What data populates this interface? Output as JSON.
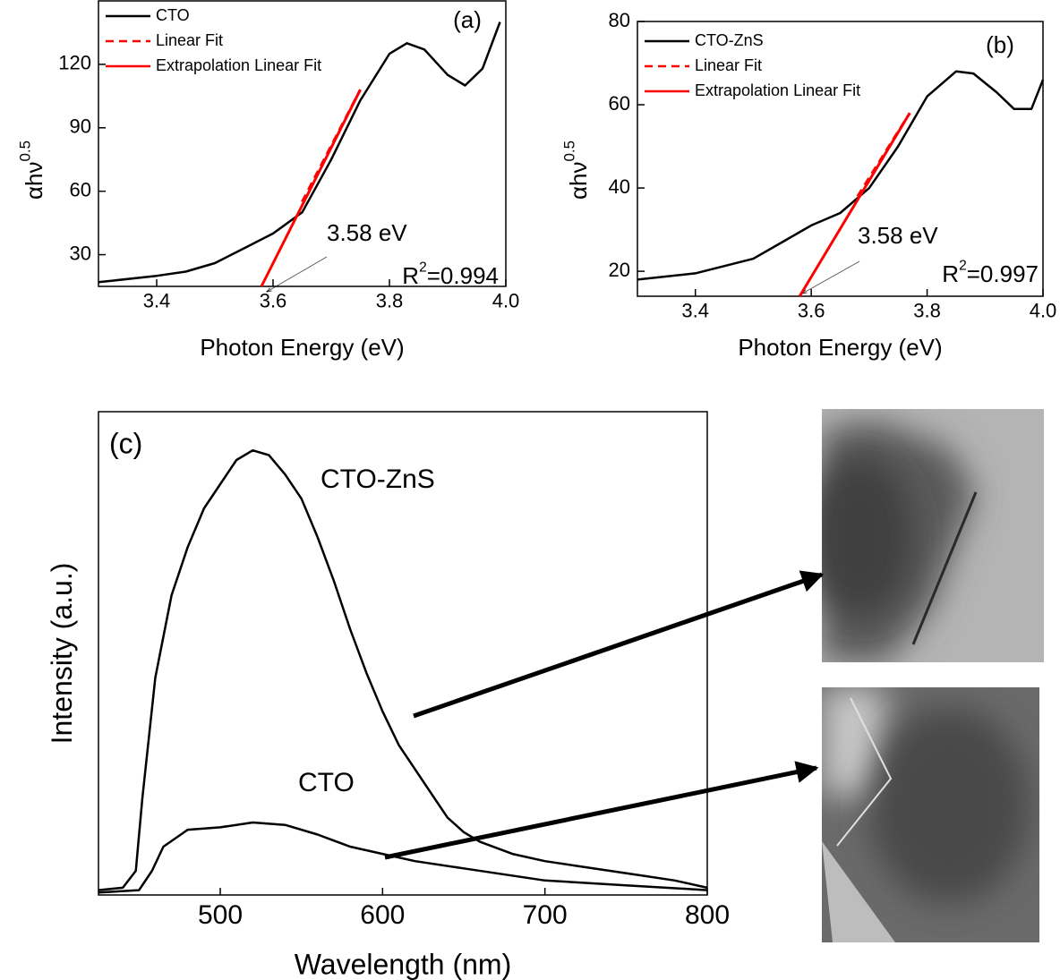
{
  "chart_data": [
    {
      "type": "line",
      "panel_label": "(a)",
      "xlabel": "Photon Energy (eV)",
      "ylabel": {
        "text": "αhν",
        "sup": "0.5"
      },
      "xlim": [
        3.3,
        4.0
      ],
      "xticks": [
        3.4,
        3.6,
        3.8,
        {
          "value": 4.0,
          "label": "4.0"
        }
      ],
      "ylim": [
        15,
        150
      ],
      "yticks": [
        30,
        60,
        90,
        120
      ],
      "legend": "upper left",
      "series": [
        {
          "name": "CTO",
          "color": "#000000",
          "linestyle": "solid",
          "x": [
            3.3,
            3.4,
            3.45,
            3.5,
            3.55,
            3.6,
            3.65,
            3.7,
            3.75,
            3.8,
            3.83,
            3.86,
            3.9,
            3.93,
            3.96,
            3.99
          ],
          "values": [
            17,
            20,
            22,
            26,
            33,
            40,
            50,
            75,
            103,
            125,
            130,
            127,
            115,
            110,
            118,
            140
          ]
        },
        {
          "name": "Linear Fit",
          "color": "#ff0000",
          "linestyle": "dashed",
          "x": [
            3.65,
            3.75
          ],
          "values": [
            55,
            108
          ]
        },
        {
          "name": "Extrapolation Linear Fit",
          "color": "#ff0000",
          "linestyle": "solid",
          "x": [
            3.58,
            3.75
          ],
          "values": [
            15,
            108
          ]
        }
      ],
      "annotations": [
        {
          "text": "3.58 eV"
        },
        {
          "text": "R",
          "sup": "2",
          "rest": "=0.994"
        }
      ]
    },
    {
      "type": "line",
      "panel_label": "(b)",
      "xlabel": "Photon Energy (eV)",
      "ylabel": {
        "text": "αhν",
        "sup": "0.5"
      },
      "xlim": [
        3.3,
        4.0
      ],
      "xticks": [
        3.4,
        3.6,
        3.8,
        {
          "value": 4.0,
          "label": "4.0"
        }
      ],
      "ylim": [
        14,
        80
      ],
      "yticks": [
        20,
        40,
        60,
        80
      ],
      "legend": "upper left",
      "series": [
        {
          "name": "CTO-ZnS",
          "color": "#000000",
          "linestyle": "solid",
          "x": [
            3.3,
            3.4,
            3.5,
            3.55,
            3.6,
            3.65,
            3.7,
            3.75,
            3.8,
            3.85,
            3.88,
            3.92,
            3.95,
            3.98,
            4.0
          ],
          "values": [
            18,
            19.5,
            23,
            27,
            31,
            34,
            40,
            50,
            62,
            68,
            67.5,
            63,
            59,
            59,
            66
          ]
        },
        {
          "name": "Linear Fit",
          "color": "#ff0000",
          "linestyle": "dashed",
          "x": [
            3.68,
            3.77
          ],
          "values": [
            38,
            58
          ]
        },
        {
          "name": "Extrapolation Linear Fit",
          "color": "#ff0000",
          "linestyle": "solid",
          "x": [
            3.58,
            3.77
          ],
          "values": [
            14,
            58
          ]
        }
      ],
      "annotations": [
        {
          "text": "3.58 eV"
        },
        {
          "text": "R",
          "sup": "2",
          "rest": "=0.997"
        }
      ]
    },
    {
      "type": "line",
      "panel_label": "(c)",
      "xlabel": "Wavelength (nm)",
      "ylabel": {
        "text": "Intensity (a.u.)"
      },
      "xlim": [
        425,
        800
      ],
      "xticks": [
        500,
        600,
        700,
        800
      ],
      "ylim": [
        0,
        1
      ],
      "series": [
        {
          "color": "#000000",
          "linestyle": "solid",
          "x": [
            425,
            440,
            448,
            452,
            460,
            470,
            480,
            490,
            500,
            510,
            520,
            530,
            540,
            550,
            560,
            570,
            580,
            590,
            600,
            610,
            620,
            630,
            640,
            650,
            660,
            680,
            700,
            720,
            740,
            760,
            780,
            800
          ],
          "values": [
            0.01,
            0.015,
            0.05,
            0.2,
            0.45,
            0.62,
            0.72,
            0.8,
            0.85,
            0.9,
            0.92,
            0.91,
            0.87,
            0.82,
            0.74,
            0.65,
            0.55,
            0.46,
            0.38,
            0.31,
            0.26,
            0.21,
            0.16,
            0.13,
            0.11,
            0.085,
            0.07,
            0.06,
            0.05,
            0.04,
            0.03,
            0.015
          ]
        },
        {
          "color": "#000000",
          "linestyle": "solid",
          "x": [
            425,
            450,
            458,
            465,
            480,
            500,
            520,
            540,
            560,
            580,
            600,
            620,
            650,
            700,
            750,
            800
          ],
          "values": [
            0.005,
            0.01,
            0.05,
            0.1,
            0.135,
            0.14,
            0.15,
            0.145,
            0.125,
            0.1,
            0.085,
            0.07,
            0.055,
            0.03,
            0.02,
            0.01
          ]
        }
      ],
      "annotations": [
        {
          "text": "CTO-ZnS"
        },
        {
          "text": "CTO"
        }
      ]
    }
  ]
}
